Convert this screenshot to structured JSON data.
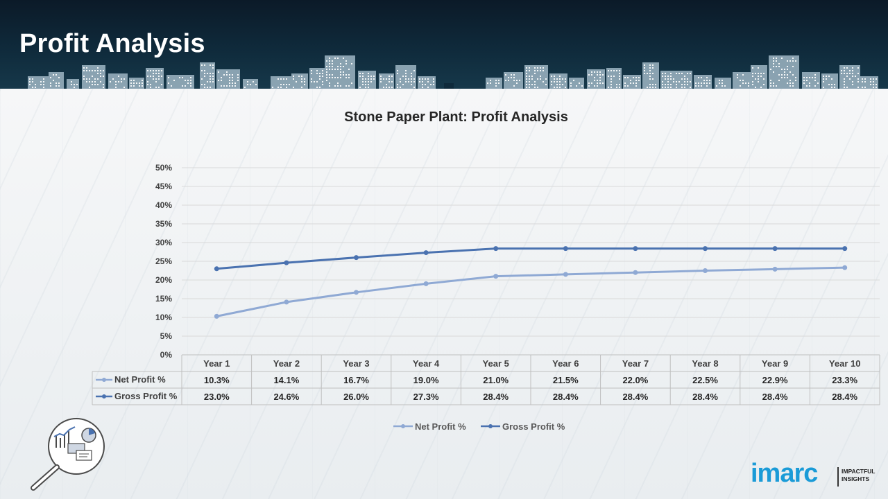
{
  "header": {
    "title": "Profit Analysis"
  },
  "colors": {
    "header_bg": "#0f2a3b",
    "net_profit": "#8fa9d4",
    "gross_profit": "#4a72b0",
    "gridline": "#d9d9d9",
    "logo_blue": "#1a9bd7"
  },
  "chart_data": {
    "type": "line",
    "title": "Stone Paper Plant: Profit Analysis",
    "categories": [
      "Year 1",
      "Year 2",
      "Year 3",
      "Year 4",
      "Year 5",
      "Year 6",
      "Year 7",
      "Year 8",
      "Year 9",
      "Year 10"
    ],
    "series": [
      {
        "name": "Net Profit %",
        "values": [
          10.3,
          14.1,
          16.7,
          19.0,
          21.0,
          21.5,
          22.0,
          22.5,
          22.9,
          23.3
        ],
        "labels": [
          "10.3%",
          "14.1%",
          "16.7%",
          "19.0%",
          "21.0%",
          "21.5%",
          "22.0%",
          "22.5%",
          "22.9%",
          "23.3%"
        ]
      },
      {
        "name": "Gross Profit %",
        "values": [
          23.0,
          24.6,
          26.0,
          27.3,
          28.4,
          28.4,
          28.4,
          28.4,
          28.4,
          28.4
        ],
        "labels": [
          "23.0%",
          "24.6%",
          "26.0%",
          "27.3%",
          "28.4%",
          "28.4%",
          "28.4%",
          "28.4%",
          "28.4%",
          "28.4%"
        ]
      }
    ],
    "ylim": [
      0,
      50
    ],
    "yticks": [
      "0%",
      "5%",
      "10%",
      "15%",
      "20%",
      "25%",
      "30%",
      "35%",
      "40%",
      "45%",
      "50%"
    ],
    "grid": true,
    "legend_position": "bottom",
    "data_table": true
  },
  "logo": {
    "brand": "imarc",
    "tagline_line1": "IMPACTFUL",
    "tagline_line2": "INSIGHTS"
  },
  "icons": {
    "analysis": "magnifier-analytics-icon"
  }
}
